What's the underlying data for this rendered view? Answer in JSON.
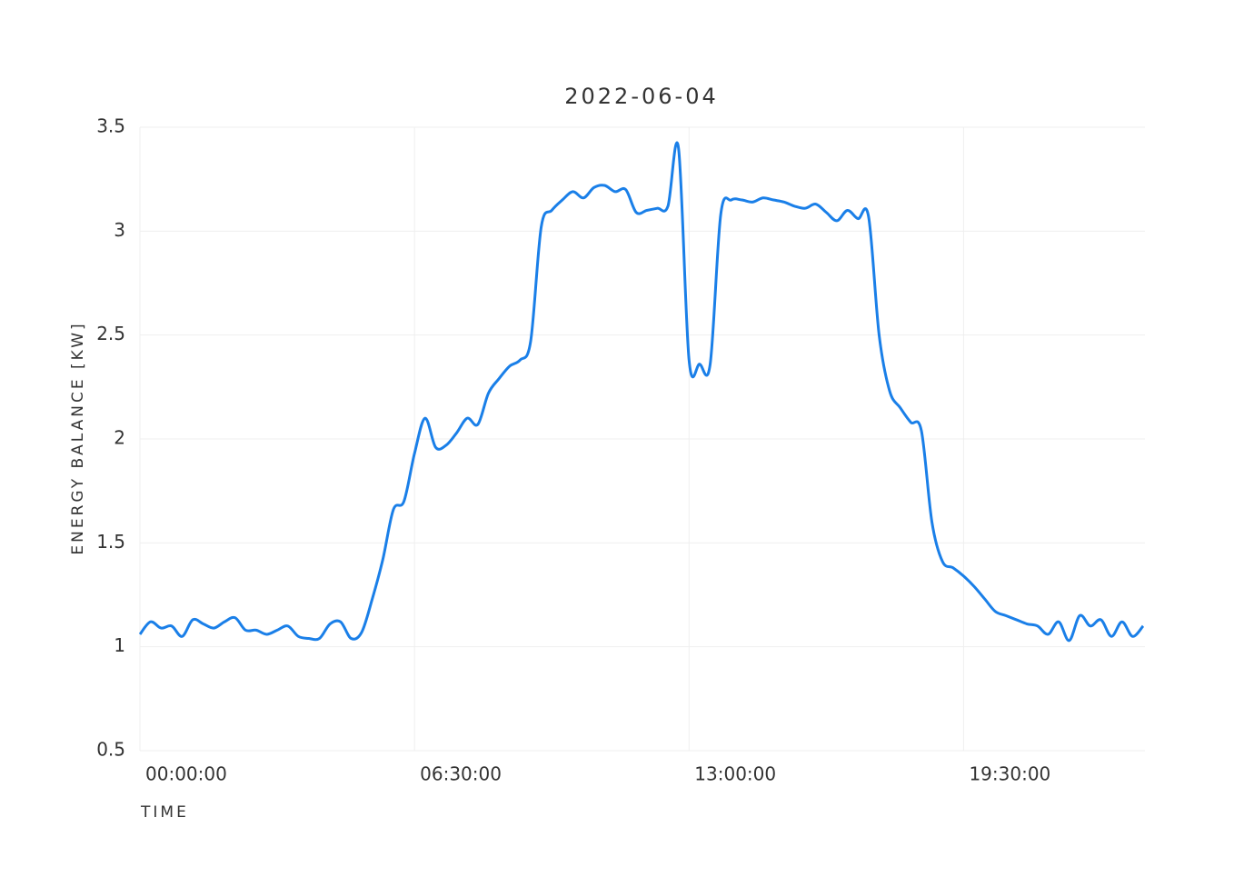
{
  "chart_data": {
    "type": "line",
    "title": "2022-06-04",
    "xlabel": "TIME",
    "ylabel": "ENERGY BALANCE [KW]",
    "x": [
      "00:00:00",
      "00:15:00",
      "00:30:00",
      "00:45:00",
      "01:00:00",
      "01:15:00",
      "01:30:00",
      "01:45:00",
      "02:00:00",
      "02:15:00",
      "02:30:00",
      "02:45:00",
      "03:00:00",
      "03:15:00",
      "03:30:00",
      "03:45:00",
      "04:00:00",
      "04:15:00",
      "04:30:00",
      "04:45:00",
      "05:00:00",
      "05:15:00",
      "05:30:00",
      "05:45:00",
      "06:00:00",
      "06:15:00",
      "06:30:00",
      "06:45:00",
      "07:00:00",
      "07:15:00",
      "07:30:00",
      "07:45:00",
      "08:00:00",
      "08:15:00",
      "08:30:00",
      "08:45:00",
      "09:00:00",
      "09:15:00",
      "09:30:00",
      "09:45:00",
      "10:00:00",
      "10:15:00",
      "10:30:00",
      "10:45:00",
      "11:00:00",
      "11:15:00",
      "11:30:00",
      "11:45:00",
      "12:00:00",
      "12:15:00",
      "12:30:00",
      "12:45:00",
      "13:00:00",
      "13:15:00",
      "13:30:00",
      "13:45:00",
      "14:00:00",
      "14:15:00",
      "14:30:00",
      "14:45:00",
      "15:00:00",
      "15:15:00",
      "15:30:00",
      "15:45:00",
      "16:00:00",
      "16:15:00",
      "16:30:00",
      "16:45:00",
      "17:00:00",
      "17:15:00",
      "17:30:00",
      "17:45:00",
      "18:00:00",
      "18:15:00",
      "18:30:00",
      "18:45:00",
      "19:00:00",
      "19:15:00",
      "19:30:00",
      "19:45:00",
      "20:00:00",
      "20:15:00",
      "20:30:00",
      "20:45:00",
      "21:00:00",
      "21:15:00",
      "21:30:00",
      "21:45:00",
      "22:00:00",
      "22:15:00",
      "22:30:00",
      "22:45:00",
      "23:00:00",
      "23:15:00",
      "23:30:00",
      "23:45:00"
    ],
    "series": [
      {
        "name": "energy balance",
        "color": "#1a7fe8",
        "values": [
          1.06,
          1.12,
          1.09,
          1.1,
          1.05,
          1.13,
          1.11,
          1.09,
          1.12,
          1.14,
          1.08,
          1.08,
          1.06,
          1.08,
          1.1,
          1.05,
          1.04,
          1.04,
          1.11,
          1.12,
          1.04,
          1.07,
          1.23,
          1.42,
          1.66,
          1.7,
          1.93,
          2.1,
          1.96,
          1.97,
          2.03,
          2.1,
          2.07,
          2.22,
          2.29,
          2.35,
          2.38,
          2.47,
          3.02,
          3.1,
          3.15,
          3.19,
          3.16,
          3.21,
          3.22,
          3.19,
          3.2,
          3.09,
          3.1,
          3.11,
          3.12,
          3.4,
          2.38,
          2.36,
          2.36,
          3.08,
          3.15,
          3.15,
          3.14,
          3.16,
          3.15,
          3.14,
          3.12,
          3.11,
          3.13,
          3.09,
          3.05,
          3.1,
          3.06,
          3.07,
          2.5,
          2.23,
          2.15,
          2.08,
          2.04,
          1.6,
          1.41,
          1.38,
          1.34,
          1.29,
          1.23,
          1.17,
          1.15,
          1.13,
          1.11,
          1.1,
          1.06,
          1.12,
          1.03,
          1.15,
          1.1,
          1.13,
          1.05,
          1.12,
          1.05,
          1.1
        ]
      }
    ],
    "xlim": [
      "00:00:00",
      "23:45:00"
    ],
    "xticks": [
      "00:00:00",
      "06:30:00",
      "13:00:00",
      "19:30:00"
    ],
    "ylim": [
      0.5,
      3.5
    ],
    "yticks": [
      0.5,
      1,
      1.5,
      2,
      2.5,
      3,
      3.5
    ],
    "grid": true
  }
}
